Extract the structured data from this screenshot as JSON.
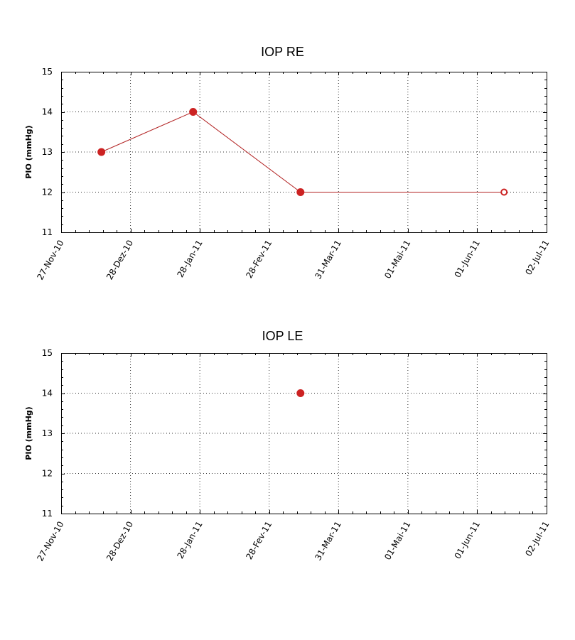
{
  "chart_data": [
    {
      "type": "line",
      "title": "IOP RE",
      "xlabel": "",
      "ylabel": "PIO (mmHg)",
      "ylim": [
        11,
        15
      ],
      "yticks": [
        "11",
        "12",
        "13",
        "14",
        "15"
      ],
      "xticks": [
        "27-Nov-10",
        "28-Dez-10",
        "28-Jan-11",
        "28-Fev-11",
        "31-Mar-11",
        "01-Mai-11",
        "01-Jun-11",
        "02-Jul-11"
      ],
      "grid": true,
      "series": [
        {
          "color": "#cc2222",
          "points": [
            {
              "x": "2010-12-15",
              "y": 13
            },
            {
              "x": "2011-01-25",
              "y": 14
            },
            {
              "x": "2011-03-14",
              "y": 12
            },
            {
              "x": "2011-06-13",
              "y": 12,
              "marker": "hollow"
            }
          ]
        }
      ]
    },
    {
      "type": "scatter",
      "title": "IOP LE",
      "xlabel": "",
      "ylabel": "PIO (mmHg)",
      "ylim": [
        11,
        15
      ],
      "yticks": [
        "11",
        "12",
        "13",
        "14",
        "15"
      ],
      "xticks": [
        "27-Nov-10",
        "28-Dez-10",
        "28-Jan-11",
        "28-Fev-11",
        "31-Mar-11",
        "01-Mai-11",
        "01-Jun-11",
        "02-Jul-11"
      ],
      "grid": true,
      "series": [
        {
          "color": "#cc2222",
          "points": [
            {
              "x": "2011-03-14",
              "y": 14
            }
          ]
        }
      ]
    }
  ]
}
